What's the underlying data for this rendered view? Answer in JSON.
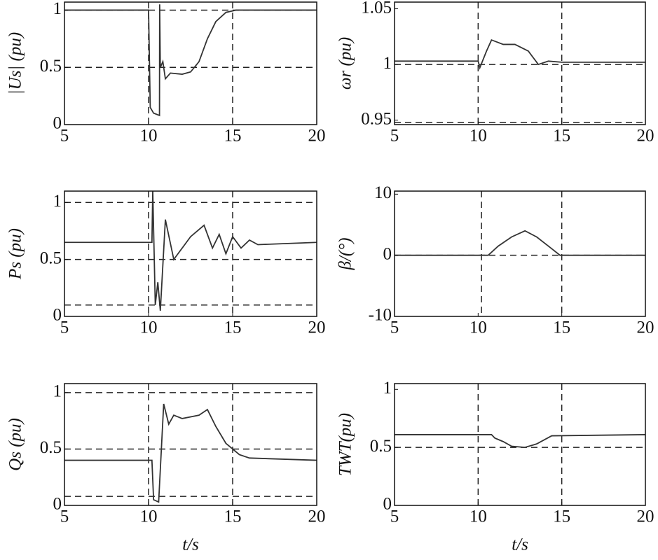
{
  "chart_data": [
    {
      "type": "line",
      "ylabel": "|Us| (pu)",
      "xlim": [
        5,
        20
      ],
      "ylim": [
        0,
        1.07
      ],
      "xticks": [
        5,
        10,
        15,
        20
      ],
      "yticks": [
        0,
        0.5,
        1
      ],
      "vlines": [
        10,
        15
      ],
      "hlines": [
        1,
        0.5
      ],
      "x": [
        5,
        10,
        10.1,
        10.3,
        10.65,
        10.66,
        10.7,
        10.85,
        11,
        11.3,
        12,
        12.5,
        13,
        13.5,
        14,
        14.6,
        15.2,
        20
      ],
      "series": [
        {
          "color": "#333333",
          "values": [
            1,
            1,
            0.15,
            0.1,
            0.08,
            1.05,
            0.5,
            0.55,
            0.4,
            0.45,
            0.44,
            0.46,
            0.55,
            0.75,
            0.9,
            0.98,
            1,
            1
          ]
        }
      ]
    },
    {
      "type": "line",
      "ylabel": "ωr (pu)",
      "xlim": [
        5,
        20
      ],
      "ylim": [
        0.946,
        1.056
      ],
      "xticks": [
        5,
        10,
        15,
        20
      ],
      "yticks": [
        0.95,
        1,
        1.05
      ],
      "vlines": [
        10,
        15
      ],
      "hlines": [
        1,
        0.948
      ],
      "x": [
        5,
        10,
        10.1,
        10.5,
        10.8,
        11.5,
        12.2,
        13,
        13.6,
        14.2,
        15,
        20
      ],
      "series": [
        {
          "color": "#333333",
          "values": [
            1.003,
            1.003,
            0.997,
            1.012,
            1.022,
            1.018,
            1.018,
            1.012,
            1.0,
            1.003,
            1.002,
            1.002
          ]
        }
      ]
    },
    {
      "type": "line",
      "ylabel": "Ps (pu)",
      "xlim": [
        5,
        20
      ],
      "ylim": [
        0,
        1.1
      ],
      "xticks": [
        5,
        10,
        15,
        20
      ],
      "yticks": [
        0,
        0.5,
        1
      ],
      "vlines": [
        10,
        15
      ],
      "hlines": [
        1,
        0.5,
        0.1
      ],
      "x": [
        5,
        10.2,
        10.25,
        10.4,
        10.55,
        10.7,
        11,
        11.5,
        12,
        12.5,
        13.3,
        13.8,
        14.2,
        14.6,
        15,
        15.5,
        16,
        16.5,
        20
      ],
      "series": [
        {
          "color": "#333333",
          "values": [
            0.65,
            0.65,
            1.1,
            0.1,
            0.3,
            0.05,
            0.85,
            0.5,
            0.6,
            0.7,
            0.8,
            0.6,
            0.72,
            0.55,
            0.7,
            0.6,
            0.67,
            0.63,
            0.65
          ]
        }
      ]
    },
    {
      "type": "line",
      "ylabel": "β/(°)",
      "xlim": [
        5,
        20
      ],
      "ylim": [
        -10,
        10.5
      ],
      "xticks": [
        5,
        10,
        15,
        20
      ],
      "yticks": [
        -10,
        0,
        10
      ],
      "vlines": [
        10.2,
        15
      ],
      "hlines": [
        0
      ],
      "x": [
        5,
        10.6,
        11.2,
        12,
        12.8,
        13.5,
        14.2,
        14.9,
        20
      ],
      "series": [
        {
          "color": "#333333",
          "values": [
            0,
            0,
            1.5,
            3,
            4,
            3,
            1.5,
            0,
            0
          ]
        }
      ]
    },
    {
      "type": "line",
      "ylabel": "Qs (pu)",
      "xlabel": "t/s",
      "xlim": [
        5,
        20
      ],
      "ylim": [
        0,
        1.08
      ],
      "xticks": [
        5,
        10,
        15,
        20
      ],
      "yticks": [
        0,
        0.5,
        1
      ],
      "vlines": [
        10,
        15
      ],
      "hlines": [
        1,
        0.5,
        0.08
      ],
      "x": [
        5,
        10.2,
        10.3,
        10.6,
        10.9,
        11.2,
        11.5,
        12,
        13,
        13.5,
        14,
        14.6,
        15.4,
        16,
        20
      ],
      "series": [
        {
          "color": "#333333",
          "values": [
            0.4,
            0.4,
            0.05,
            0.03,
            0.9,
            0.72,
            0.8,
            0.77,
            0.8,
            0.85,
            0.7,
            0.55,
            0.45,
            0.42,
            0.4
          ]
        }
      ]
    },
    {
      "type": "line",
      "ylabel": "TWT(pu)",
      "xlabel": "t/s",
      "xlim": [
        5,
        20
      ],
      "ylim": [
        0,
        1.05
      ],
      "xticks": [
        5,
        10,
        15,
        20
      ],
      "yticks": [
        0,
        0.5,
        1
      ],
      "vlines": [
        10,
        15
      ],
      "hlines": [
        0.5
      ],
      "x": [
        5,
        10.8,
        11,
        11.5,
        12,
        12.8,
        13.5,
        14.4,
        20
      ],
      "series": [
        {
          "color": "#333333",
          "values": [
            0.61,
            0.61,
            0.58,
            0.55,
            0.51,
            0.5,
            0.53,
            0.6,
            0.61
          ]
        }
      ]
    }
  ]
}
